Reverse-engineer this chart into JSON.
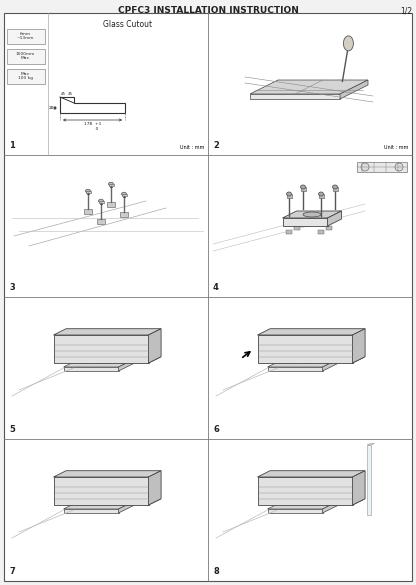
{
  "title": "CPFC3 INSTALLATION INSTRUCTION",
  "page": "1/2",
  "bg_color": "#f2f2f2",
  "panel_bg": "#ffffff",
  "border_color": "#888888",
  "text_color": "#222222",
  "panel_labels": [
    "1",
    "2",
    "3",
    "4",
    "5",
    "6",
    "7",
    "8"
  ],
  "panel1_title": "Glass Cutout",
  "unit_mm": "Unit : mm",
  "specs": [
    "6mm\n~13mm",
    "1000mm\nMax",
    "Max 100kg"
  ]
}
